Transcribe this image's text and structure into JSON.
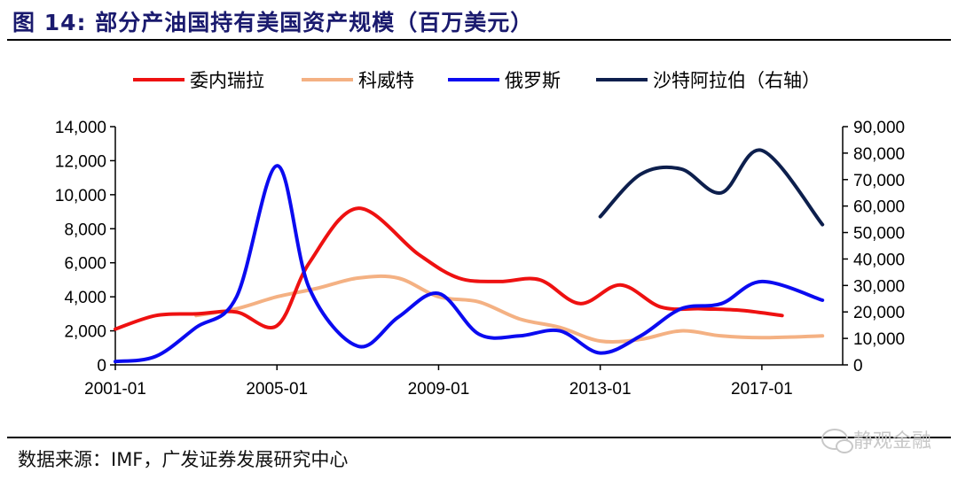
{
  "header": {
    "title": "图 14:  部分产油国持有美国资产规模（百万美元）"
  },
  "footer": {
    "source": "数据来源：IMF，广发证券发展研究中心",
    "watermark": "静观金融"
  },
  "chart_data": {
    "type": "line",
    "x_ticks": [
      "2001-01",
      "2005-01",
      "2009-01",
      "2013-01",
      "2017-01"
    ],
    "x_range": [
      2001.0,
      2019.0
    ],
    "left_axis": {
      "ticks": [
        "0",
        "2,000",
        "4,000",
        "6,000",
        "8,000",
        "10,000",
        "12,000",
        "14,000"
      ],
      "range": [
        0,
        14000
      ]
    },
    "right_axis": {
      "ticks": [
        "0",
        "10,000",
        "20,000",
        "30,000",
        "40,000",
        "50,000",
        "60,000",
        "70,000",
        "80,000",
        "90,000"
      ],
      "range": [
        0,
        90000
      ]
    },
    "legend_placement": "top",
    "series": [
      {
        "name": "委内瑞拉",
        "axis": "left",
        "color": "#ee1111",
        "x": [
          2001.0,
          2002.0,
          2003.0,
          2004.0,
          2005.0,
          2005.8,
          2007.0,
          2008.5,
          2009.5,
          2010.5,
          2011.5,
          2012.5,
          2013.5,
          2014.5,
          2015.5,
          2016.5,
          2017.5
        ],
        "y": [
          2100,
          2900,
          3000,
          3100,
          2300,
          6000,
          9200,
          6500,
          5100,
          4900,
          5000,
          3600,
          4700,
          3400,
          3300,
          3200,
          2900
        ]
      },
      {
        "name": "科威特",
        "axis": "left",
        "color": "#f4b183",
        "x": [
          2003.0,
          2004.0,
          2005.0,
          2006.0,
          2007.0,
          2008.0,
          2009.0,
          2010.0,
          2011.0,
          2012.0,
          2013.0,
          2014.0,
          2015.0,
          2016.0,
          2017.0,
          2018.5
        ],
        "y": [
          2900,
          3300,
          4000,
          4500,
          5100,
          5100,
          4000,
          3700,
          2700,
          2200,
          1400,
          1500,
          2000,
          1700,
          1600,
          1700
        ]
      },
      {
        "name": "俄罗斯",
        "axis": "left",
        "color": "#0b0bf0",
        "x": [
          2001.0,
          2002.0,
          2003.0,
          2004.0,
          2005.0,
          2005.8,
          2007.0,
          2008.0,
          2009.0,
          2010.0,
          2011.0,
          2012.0,
          2013.0,
          2014.0,
          2015.0,
          2016.0,
          2017.0,
          2018.5
        ],
        "y": [
          200,
          500,
          2200,
          4000,
          11700,
          4500,
          1100,
          2800,
          4200,
          1800,
          1700,
          2000,
          700,
          1700,
          3300,
          3600,
          4900,
          3800
        ]
      },
      {
        "name": "沙特阿拉伯（右轴）",
        "axis": "right",
        "color": "#0d1f4d",
        "x": [
          2013.0,
          2014.0,
          2015.0,
          2016.0,
          2017.0,
          2018.5
        ],
        "y": [
          56000,
          72000,
          74000,
          65000,
          81000,
          53000
        ]
      }
    ]
  }
}
